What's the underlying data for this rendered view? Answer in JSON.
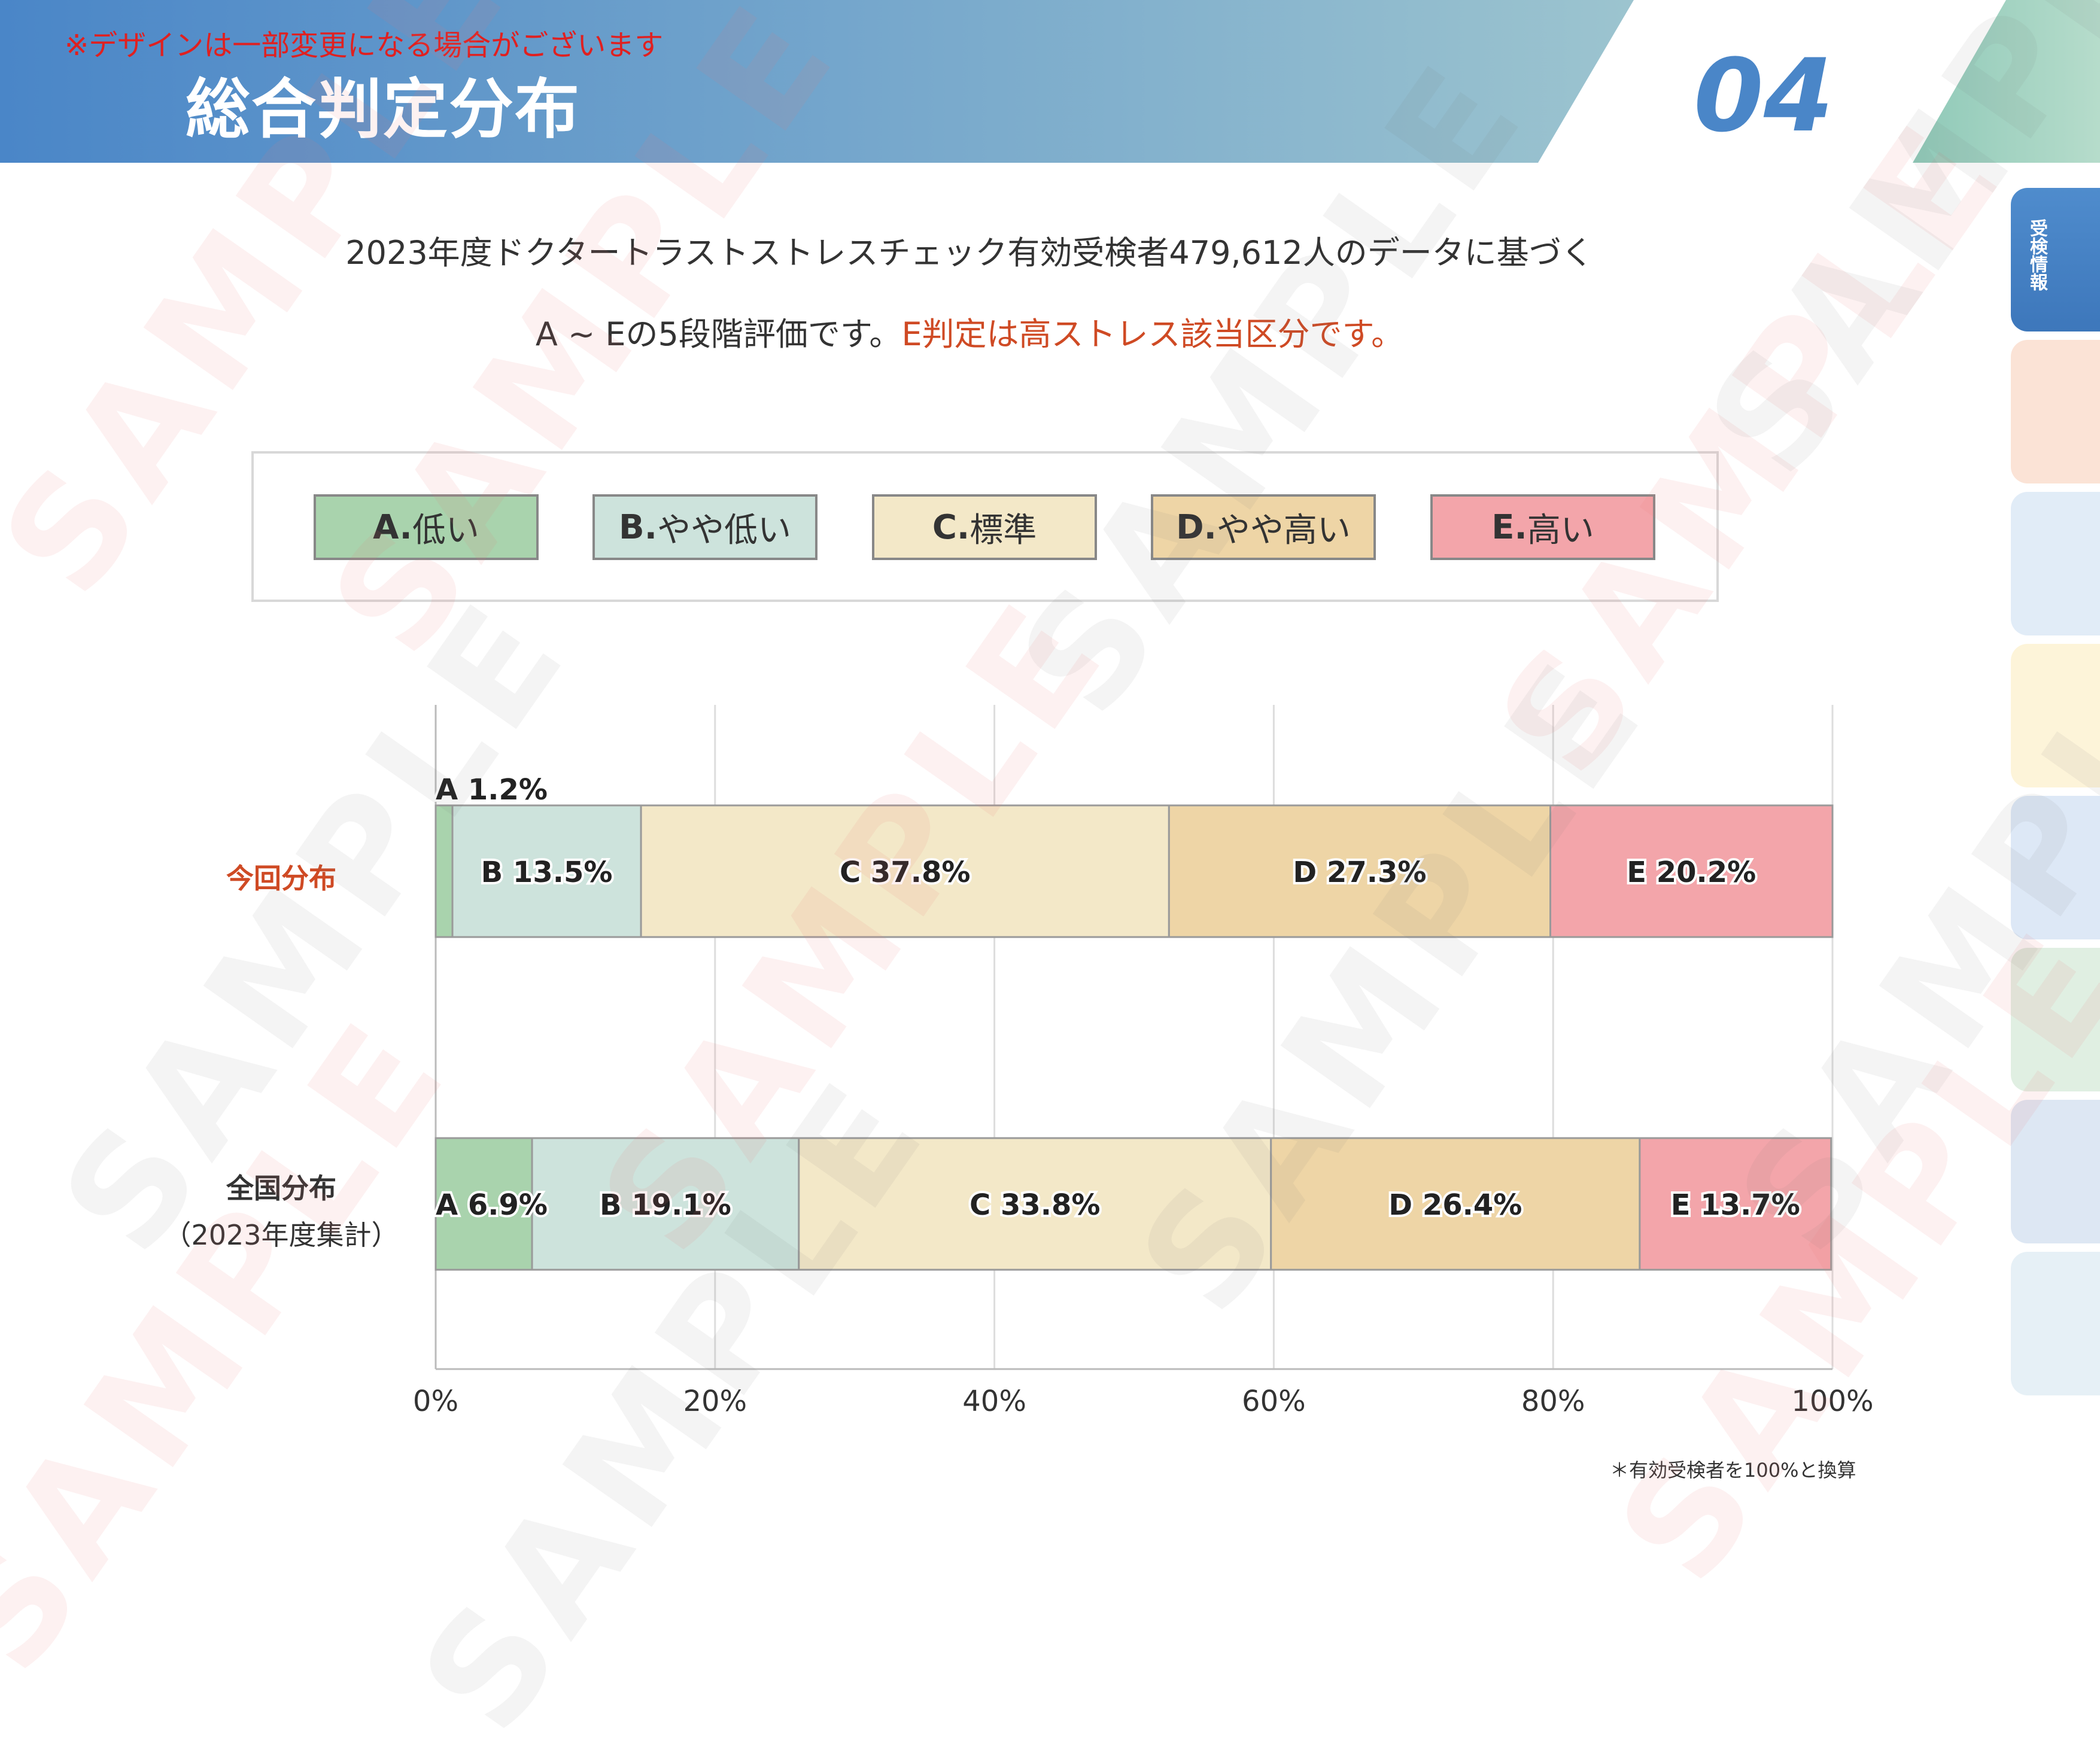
{
  "header": {
    "notice": "※デザインは一部変更になる場合がございます",
    "title": "総合判定分布",
    "page_number": "04",
    "gradient_start": "#4a86c8",
    "gradient_end": "#9cc4cf",
    "corner_color": "#9fd0bf"
  },
  "side_tabs": {
    "active_label": "受検情報",
    "active_color": "#4a86c8",
    "colors": [
      "#fbe3d6",
      "#e1ecf7",
      "#fdf4d9",
      "#dde8f6",
      "#e0efe2",
      "#dde7f3",
      "#e6f0f6"
    ]
  },
  "description": {
    "line1": "2023年度ドクタートラストストレスチェック有効受検者479,612人のデータに基づく",
    "line2_plain": "A ~ Eの5段階評価です。",
    "line2_accent": "E判定は高ストレス該当区分です。",
    "accent_color": "#cf4a24"
  },
  "legend": [
    {
      "letter": "A.",
      "text": "低い",
      "color": "#a9d3ad"
    },
    {
      "letter": "B.",
      "text": "やや低い",
      "color": "#cde3dc"
    },
    {
      "letter": "C.",
      "text": "標準",
      "color": "#f3e8c8"
    },
    {
      "letter": "D.",
      "text": "やや高い",
      "color": "#eed5a6"
    },
    {
      "letter": "E.",
      "text": "高い",
      "color": "#f3a5aa"
    }
  ],
  "chart_data": {
    "type": "bar",
    "orientation": "horizontal",
    "stacked": true,
    "categories": [
      "今回分布",
      "全国分布（2023年度集計）"
    ],
    "series": [
      {
        "name": "A",
        "values": [
          1.2,
          6.9
        ]
      },
      {
        "name": "B",
        "values": [
          13.5,
          19.1
        ]
      },
      {
        "name": "C",
        "values": [
          37.8,
          33.8
        ]
      },
      {
        "name": "D",
        "values": [
          27.3,
          26.4
        ]
      },
      {
        "name": "E",
        "values": [
          20.2,
          13.7
        ]
      }
    ],
    "data_labels": [
      [
        "A 1.2%",
        "B 13.5%",
        "C 37.8%",
        "D 27.3%",
        "E 20.2%"
      ],
      [
        "A 6.9%",
        "B 19.1%",
        "C 33.8%",
        "D 26.4%",
        "E 13.7%"
      ]
    ],
    "row_labels": [
      {
        "line1": "今回分布",
        "line2": "",
        "color": "#cf4a24"
      },
      {
        "line1": "全国分布",
        "line2": "（2023年度集計）",
        "color": "#333333"
      }
    ],
    "xlim": [
      0,
      100
    ],
    "xticks": [
      "0%",
      "20%",
      "40%",
      "60%",
      "80%",
      "100%"
    ],
    "grid": true,
    "footnote": "＊有効受検者を100%と換算"
  },
  "watermark": "SAMPLE"
}
